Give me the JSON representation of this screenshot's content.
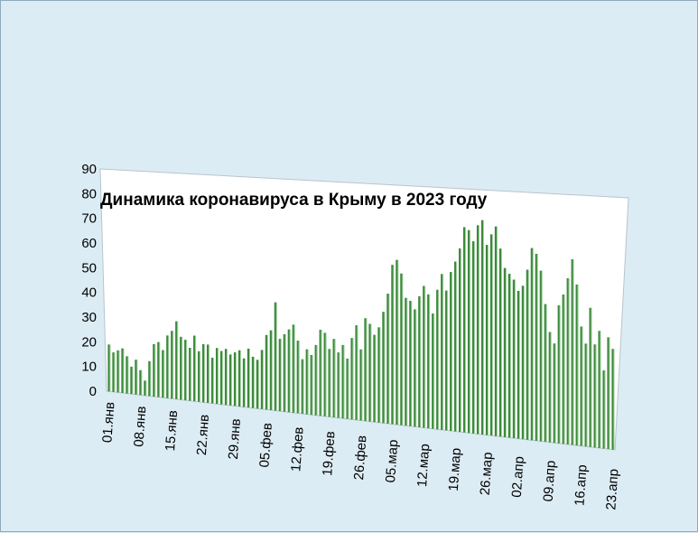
{
  "chart_data": {
    "type": "bar",
    "title": "Динамика  коронавируса в Крыму в 2023 году",
    "xlabel": "",
    "ylabel": "",
    "ylim": [
      0,
      90
    ],
    "yticks": [
      0,
      10,
      20,
      30,
      40,
      50,
      60,
      70,
      80,
      90
    ],
    "grid": false,
    "legend": "none",
    "perspective": "3d",
    "bar_color": "#3c8a3c",
    "plot_background": "#ffffff",
    "x_tick_labels": [
      "01.янв",
      "08.янв",
      "15.янв",
      "22.янв",
      "29.янв",
      "05.фев",
      "12.фев",
      "19.фев",
      "26.фев",
      "05.мар",
      "12.мар",
      "19.мар",
      "26.мар",
      "02.апр",
      "09.апр",
      "16.апр",
      "23.апр"
    ],
    "x_tick_every": 7,
    "values": [
      19,
      16,
      17,
      18,
      15,
      11,
      14,
      10,
      6,
      14,
      21,
      22,
      19,
      25,
      27,
      31,
      25,
      24,
      21,
      26,
      20,
      23,
      23,
      18,
      22,
      21,
      22,
      20,
      21,
      22,
      19,
      23,
      20,
      19,
      23,
      29,
      31,
      42,
      28,
      30,
      32,
      34,
      28,
      21,
      25,
      23,
      27,
      33,
      32,
      26,
      30,
      25,
      28,
      23,
      31,
      36,
      27,
      39,
      37,
      33,
      36,
      42,
      49,
      60,
      62,
      57,
      48,
      47,
      44,
      49,
      53,
      50,
      43,
      52,
      58,
      52,
      59,
      63,
      68,
      76,
      75,
      71,
      77,
      79,
      70,
      74,
      77,
      69,
      62,
      60,
      58,
      54,
      56,
      62,
      70,
      68,
      62,
      50,
      40,
      36,
      50,
      54,
      60,
      67,
      58,
      43,
      37,
      50,
      37,
      42,
      28,
      40,
      36
    ]
  }
}
